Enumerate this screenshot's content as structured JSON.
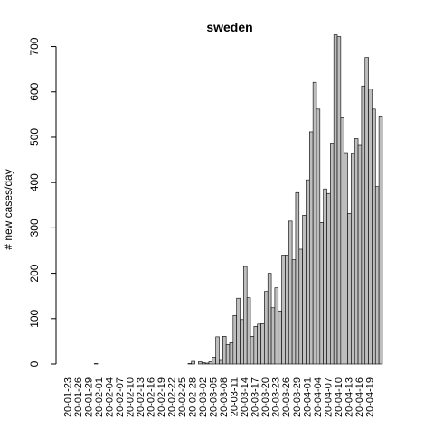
{
  "chart_data": {
    "type": "bar",
    "title": "sweden",
    "ylabel": "# new cases/day",
    "xlabel": "",
    "ylim": [
      0,
      725
    ],
    "yticks": [
      0,
      100,
      200,
      300,
      400,
      500,
      600,
      700
    ],
    "x_tick_labels": [
      "20-01-23",
      "20-01-26",
      "20-01-29",
      "20-02-01",
      "20-02-04",
      "20-02-07",
      "20-02-10",
      "20-02-13",
      "20-02-16",
      "20-02-19",
      "20-02-22",
      "20-02-25",
      "20-02-28",
      "20-03-02",
      "20-03-05",
      "20-03-08",
      "20-03-11",
      "20-03-14",
      "20-03-17",
      "20-03-20",
      "20-03-23",
      "20-03-26",
      "20-03-29",
      "20-04-01",
      "20-04-04",
      "20-04-07",
      "20-04-10",
      "20-04-13",
      "20-04-16",
      "20-04-19"
    ],
    "start_date": "2020-01-23",
    "values": [
      0,
      0,
      0,
      0,
      0,
      0,
      0,
      0,
      1,
      0,
      0,
      0,
      0,
      0,
      0,
      0,
      0,
      0,
      0,
      0,
      0,
      0,
      0,
      0,
      0,
      0,
      0,
      0,
      0,
      0,
      0,
      0,
      0,
      0,
      0,
      1,
      6,
      0,
      5,
      3,
      2,
      5,
      15,
      60,
      8,
      61,
      43,
      47,
      107,
      145,
      98,
      215,
      146,
      61,
      83,
      88,
      89,
      160,
      200,
      124,
      168,
      117,
      240,
      240,
      315,
      230,
      378,
      253,
      328,
      406,
      512,
      621,
      562,
      312,
      386,
      376,
      487,
      726,
      722,
      543,
      466,
      332,
      465,
      497,
      482,
      613,
      676,
      606,
      562,
      391,
      545
    ],
    "grid": false,
    "legend": "none",
    "colors": {
      "bar_fill": "#bebebe",
      "bar_stroke": "#000000",
      "axis": "#000000",
      "text": "#000000"
    }
  }
}
